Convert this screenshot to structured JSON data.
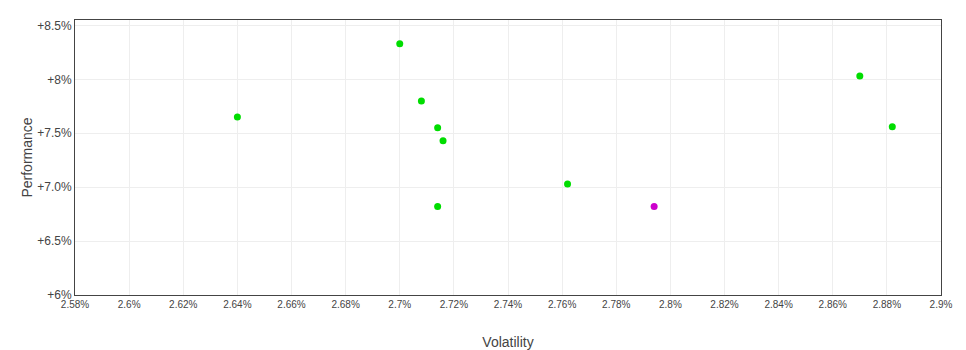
{
  "chart_data": {
    "type": "scatter",
    "xlabel": "Volatility",
    "ylabel": "Performance",
    "series": [
      {
        "color": "#00dd00",
        "x": [
          0.027,
          0.0264,
          0.02708,
          0.02714,
          0.02716,
          0.02714,
          0.02762,
          0.0287,
          0.02882
        ],
        "values": [
          0.0833,
          0.0765,
          0.078,
          0.0755,
          0.0743,
          0.0682,
          0.0703,
          0.0803,
          0.0756
        ]
      },
      {
        "color": "#cc00cc",
        "x": [
          0.02794
        ],
        "values": [
          0.0682
        ]
      }
    ],
    "xlim": [
      0.0258,
      0.029
    ],
    "ylim": [
      0.06,
      0.0855
    ],
    "xticks": [
      {
        "value": 0.0258,
        "label": "2.58%"
      },
      {
        "value": 0.026,
        "label": "2.6%"
      },
      {
        "value": 0.0262,
        "label": "2.62%"
      },
      {
        "value": 0.0264,
        "label": "2.64%"
      },
      {
        "value": 0.0266,
        "label": "2.66%"
      },
      {
        "value": 0.0268,
        "label": "2.68%"
      },
      {
        "value": 0.027,
        "label": "2.7%"
      },
      {
        "value": 0.0272,
        "label": "2.72%"
      },
      {
        "value": 0.0274,
        "label": "2.74%"
      },
      {
        "value": 0.0276,
        "label": "2.76%"
      },
      {
        "value": 0.0278,
        "label": "2.78%"
      },
      {
        "value": 0.028,
        "label": "2.8%"
      },
      {
        "value": 0.0282,
        "label": "2.82%"
      },
      {
        "value": 0.0284,
        "label": "2.84%"
      },
      {
        "value": 0.0286,
        "label": "2.86%"
      },
      {
        "value": 0.0288,
        "label": "2.88%"
      },
      {
        "value": 0.029,
        "label": "2.9%"
      }
    ],
    "yticks": [
      {
        "value": 0.06,
        "label": "+6%"
      },
      {
        "value": 0.065,
        "label": "+6.5%"
      },
      {
        "value": 0.07,
        "label": "+7.0%"
      },
      {
        "value": 0.075,
        "label": "+7.5%"
      },
      {
        "value": 0.08,
        "label": "+8%"
      },
      {
        "value": 0.085,
        "label": "+8.5%"
      }
    ],
    "grid": true
  }
}
